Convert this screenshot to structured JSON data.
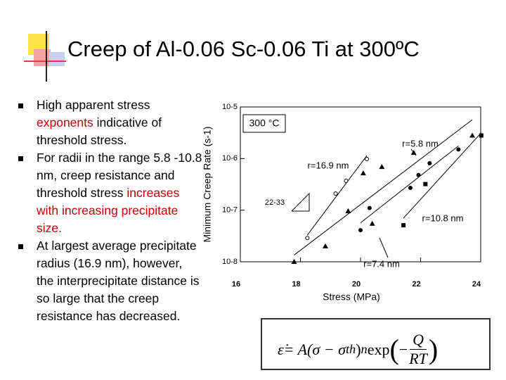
{
  "title": "Creep of Al-0.06 Sc-0.06 Ti at 300ºC",
  "bullets": [
    [
      {
        "text": "High apparent stress "
      },
      {
        "text": "exponents",
        "color": "#c00000"
      },
      {
        "text": " indicative of threshold stress."
      }
    ],
    [
      {
        "text": "For radii in the range 5.8 -10.8 nm, creep resistance and threshold stress "
      },
      {
        "text": "increases with increasing precipitate size.",
        "color": "#c00000"
      }
    ],
    [
      {
        "text": "At largest average precipitate radius (16.9 nm), however, the interprecipitate distance is so large that the creep resistance has decreased."
      }
    ]
  ],
  "chart_data": {
    "type": "scatter",
    "xlabel": "Stress (MPa)",
    "ylabel": "Minimum Creep Rate (s-1)",
    "xlim": [
      16,
      24
    ],
    "xticks": [
      16,
      18,
      20,
      22,
      24
    ],
    "ylim": [
      1e-08,
      1e-05
    ],
    "log_y": true,
    "yticks": [
      {
        "value": 1e-05,
        "label": "10-5"
      },
      {
        "value": 1e-06,
        "label": "10-6"
      },
      {
        "value": 1e-07,
        "label": "10-7"
      },
      {
        "value": 1e-08,
        "label": "10-8"
      }
    ],
    "annotations": [
      "300 °C",
      "r=5.8 nm",
      "r=16.9 nm",
      "r=10.8 nm",
      "r=7.4 nm",
      "22-33"
    ],
    "series": [
      {
        "marker": "circle-open",
        "color": "#000000",
        "x": [
          18.23,
          19.17,
          19.52,
          20.21
        ],
        "values": [
          2.9e-08,
          2.1e-07,
          3.7e-07,
          9.8e-07
        ]
      },
      {
        "marker": "triangle",
        "color": "#000000",
        "x": [
          17.79,
          18.83,
          19.59,
          20.09,
          20.39,
          20.71,
          21.77,
          23.72
        ],
        "values": [
          1e-08,
          2e-08,
          9.6e-08,
          5.2e-07,
          5.5e-08,
          6.9e-07,
          1.3e-06,
          2.8e-06
        ]
      },
      {
        "marker": "circle",
        "color": "#000000",
        "x": [
          20.0,
          20.3,
          21.66,
          21.93,
          22.3,
          23.26
        ],
        "values": [
          4.1e-08,
          1.1e-07,
          2.7e-07,
          4.8e-07,
          8.1e-07,
          1.5e-06
        ]
      },
      {
        "marker": "square",
        "color": "#000000",
        "x": [
          21.43,
          22.16,
          24.02
        ],
        "values": [
          5.1e-08,
          3.2e-07,
          2.8e-06
        ]
      }
    ]
  },
  "equation": {
    "lhs": "ε̇",
    "eq": " = A(σ − σ",
    "sub": "th",
    "close": ")",
    "sup": "n",
    "exp": " exp",
    "minus": "−",
    "num": "Q",
    "den": "RT"
  }
}
